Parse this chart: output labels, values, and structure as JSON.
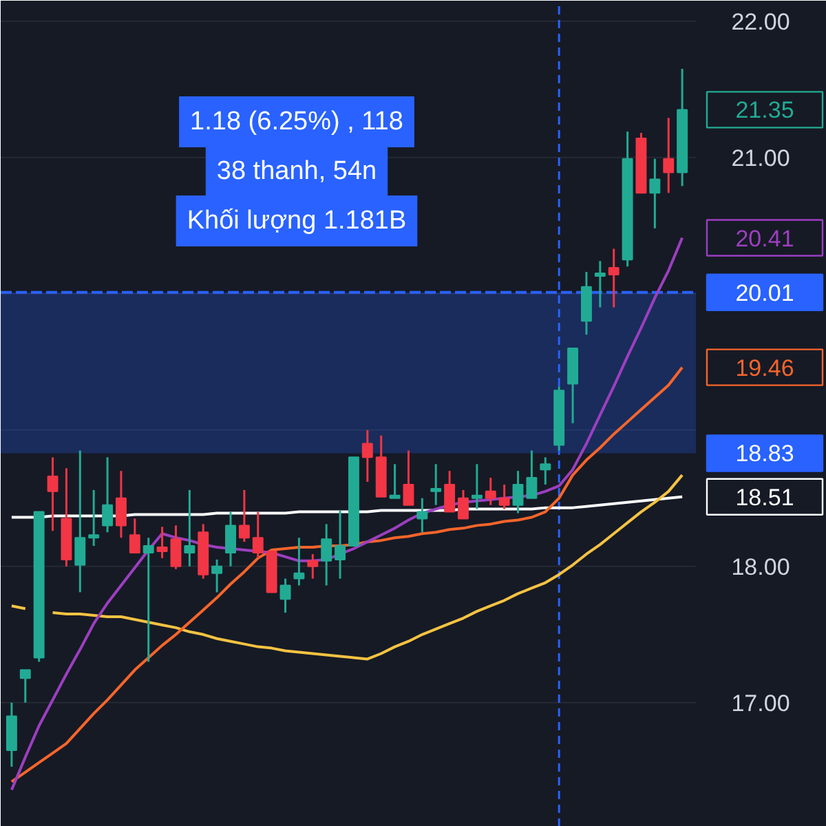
{
  "chart_data": {
    "type": "candlestick",
    "categories": [
      null,
      null,
      null,
      null,
      null,
      null,
      null,
      null,
      null,
      null,
      null,
      null,
      null,
      null,
      null,
      null,
      null,
      null,
      null,
      null,
      null,
      null,
      null,
      null,
      null,
      null,
      null,
      null,
      null,
      null,
      null,
      null,
      null,
      null,
      null,
      null,
      null,
      null,
      null,
      null,
      null,
      null,
      null,
      null,
      null,
      null,
      null,
      null,
      null,
      null
    ],
    "ohlc": [
      [
        16.65,
        17.0,
        16.53,
        16.9
      ],
      [
        17.18,
        17.24,
        17.0,
        17.24
      ],
      [
        17.33,
        18.4,
        17.3,
        18.4
      ],
      [
        18.66,
        18.8,
        18.26,
        18.55
      ],
      [
        18.35,
        18.72,
        18.0,
        18.05
      ],
      [
        18.01,
        18.85,
        17.81,
        18.21
      ],
      [
        18.21,
        18.56,
        18.15,
        18.23
      ],
      [
        18.3,
        18.8,
        18.25,
        18.45
      ],
      [
        18.5,
        18.7,
        18.21,
        18.3
      ],
      [
        18.23,
        18.35,
        18.1,
        18.1
      ],
      [
        18.1,
        18.21,
        17.3,
        18.15
      ],
      [
        18.14,
        18.29,
        18.06,
        18.11
      ],
      [
        18.2,
        18.3,
        17.98,
        18.0
      ],
      [
        18.1,
        18.56,
        18.0,
        18.15
      ],
      [
        18.25,
        18.31,
        17.91,
        17.94
      ],
      [
        17.95,
        18.05,
        17.81,
        18.0
      ],
      [
        18.1,
        18.4,
        18.0,
        18.3
      ],
      [
        18.3,
        18.56,
        18.18,
        18.21
      ],
      [
        18.21,
        18.4,
        18.06,
        18.1
      ],
      [
        18.11,
        18.11,
        17.81,
        17.81
      ],
      [
        17.76,
        17.91,
        17.66,
        17.86
      ],
      [
        17.91,
        18.21,
        17.86,
        17.95
      ],
      [
        18.04,
        18.09,
        17.91,
        18.0
      ],
      [
        18.04,
        18.31,
        17.86,
        18.2
      ],
      [
        18.05,
        18.41,
        17.91,
        18.15
      ],
      [
        18.15,
        18.8,
        18.15,
        18.8
      ],
      [
        18.9,
        19.0,
        18.62,
        18.8
      ],
      [
        18.8,
        18.96,
        18.51,
        18.51
      ],
      [
        18.5,
        18.75,
        18.5,
        18.52
      ],
      [
        18.6,
        18.85,
        18.45,
        18.45
      ],
      [
        18.35,
        18.5,
        18.25,
        18.4
      ],
      [
        18.55,
        18.75,
        18.45,
        18.57
      ],
      [
        18.6,
        18.7,
        18.4,
        18.4
      ],
      [
        18.5,
        18.56,
        18.35,
        18.35
      ],
      [
        18.5,
        18.75,
        18.42,
        18.52
      ],
      [
        18.55,
        18.65,
        18.45,
        18.5
      ],
      [
        18.5,
        18.6,
        18.42,
        18.45
      ],
      [
        18.45,
        18.7,
        18.39,
        18.6
      ],
      [
        18.5,
        18.85,
        18.5,
        18.65
      ],
      [
        18.71,
        18.8,
        18.6,
        18.75
      ],
      [
        18.89,
        19.32,
        18.85,
        19.29
      ],
      [
        19.34,
        19.6,
        19.05,
        19.6
      ],
      [
        19.8,
        20.16,
        19.7,
        20.05
      ],
      [
        20.13,
        20.24,
        19.9,
        20.15
      ],
      [
        20.19,
        20.33,
        19.9,
        20.14
      ],
      [
        20.25,
        21.19,
        20.2,
        20.99
      ],
      [
        21.14,
        21.18,
        20.74,
        20.74
      ],
      [
        20.74,
        20.99,
        20.48,
        20.84
      ],
      [
        20.99,
        21.29,
        20.74,
        20.89
      ],
      [
        20.89,
        21.65,
        20.79,
        21.35
      ]
    ],
    "colors": [
      "#22ab94",
      "#22ab94",
      "#22ab94",
      "#f23645",
      "#f23645",
      "#22ab94",
      "#22ab94",
      "#22ab94",
      "#f23645",
      "#f23645",
      "#22ab94",
      "#f23645",
      "#f23645",
      "#22ab94",
      "#f23645",
      "#22ab94",
      "#22ab94",
      "#f23645",
      "#f23645",
      "#f23645",
      "#22ab94",
      "#22ab94",
      "#f23645",
      "#22ab94",
      "#22ab94",
      "#22ab94",
      "#f23645",
      "#f23645",
      "#22ab94",
      "#f23645",
      "#22ab94",
      "#22ab94",
      "#f23645",
      "#f23645",
      "#22ab94",
      "#f23645",
      "#f23645",
      "#22ab94",
      "#22ab94",
      "#22ab94",
      "#22ab94",
      "#22ab94",
      "#22ab94",
      "#22ab94",
      "#f23645",
      "#22ab94",
      "#f23645",
      "#22ab94",
      "#f23645",
      "#22ab94"
    ],
    "series": [
      {
        "type": "line",
        "color": "#ffffff",
        "values": [
          18.36,
          18.36,
          18.36,
          18.37,
          18.37,
          18.37,
          18.37,
          18.37,
          18.37,
          18.38,
          18.38,
          18.38,
          18.38,
          18.38,
          18.38,
          18.39,
          18.39,
          18.39,
          18.39,
          18.39,
          18.39,
          18.4,
          18.4,
          18.4,
          18.4,
          18.4,
          18.4,
          18.41,
          18.41,
          18.41,
          18.41,
          18.41,
          18.41,
          18.42,
          18.42,
          18.42,
          18.42,
          18.42,
          18.42,
          18.43,
          18.43,
          18.43,
          18.44,
          18.45,
          18.46,
          18.47,
          18.48,
          18.49,
          18.5,
          18.51
        ]
      },
      {
        "type": "line",
        "color": "#f5c342",
        "values": [
          17.71,
          17.69,
          null,
          17.66,
          17.65,
          17.65,
          17.64,
          17.63,
          17.63,
          17.61,
          17.59,
          17.57,
          17.55,
          17.52,
          17.5,
          17.47,
          17.45,
          17.43,
          17.41,
          17.4,
          17.38,
          17.37,
          17.36,
          17.35,
          17.34,
          17.33,
          17.32,
          17.36,
          17.41,
          17.45,
          17.5,
          17.54,
          17.58,
          17.62,
          17.67,
          17.71,
          17.75,
          17.8,
          17.84,
          17.88,
          17.94,
          18.01,
          18.09,
          18.16,
          18.24,
          18.32,
          18.4,
          18.47,
          18.55,
          18.67
        ]
      },
      {
        "type": "line",
        "color": "#f7652b",
        "values": [
          16.42,
          16.49,
          16.56,
          16.63,
          16.7,
          16.81,
          16.92,
          17.02,
          17.13,
          17.24,
          17.33,
          17.42,
          17.5,
          17.59,
          17.68,
          17.77,
          17.87,
          17.96,
          18.06,
          18.12,
          18.13,
          18.14,
          18.14,
          18.15,
          18.15,
          18.16,
          18.18,
          18.19,
          18.21,
          18.22,
          18.24,
          18.25,
          18.27,
          18.28,
          18.3,
          18.31,
          18.33,
          18.34,
          18.36,
          18.4,
          18.5,
          18.67,
          18.78,
          18.87,
          18.97,
          19.06,
          19.15,
          19.24,
          19.33,
          19.46
        ]
      },
      {
        "type": "line",
        "color": "#9c3fc0",
        "values": [
          16.36,
          16.6,
          16.83,
          17.02,
          17.21,
          17.39,
          17.58,
          17.73,
          17.86,
          17.99,
          18.12,
          18.24,
          18.21,
          18.19,
          18.16,
          18.14,
          18.13,
          18.12,
          18.11,
          18.1,
          18.07,
          18.04,
          18.04,
          18.05,
          18.09,
          18.13,
          18.18,
          18.23,
          18.28,
          18.34,
          18.39,
          18.42,
          18.45,
          18.47,
          18.48,
          18.49,
          18.5,
          18.51,
          18.52,
          18.55,
          18.59,
          18.71,
          18.9,
          19.11,
          19.32,
          19.54,
          19.75,
          19.97,
          20.17,
          20.41
        ]
      }
    ],
    "ylim": [
      16.09,
      22.15
    ],
    "yticks": [
      {
        "value": 17,
        "label": "17.00"
      },
      {
        "value": 18,
        "label": "18.00"
      },
      {
        "value": 19,
        "label": null
      },
      {
        "value": 20,
        "label": null
      },
      {
        "value": 21,
        "label": "21.00"
      },
      {
        "value": 22,
        "label": "22.00"
      }
    ],
    "tick_labels": "y",
    "grid": "y",
    "bands": [
      {
        "axis": "y",
        "from": 18.83,
        "to": 20.01,
        "label": "18.83",
        "color": "#2962ff"
      }
    ],
    "ref_lines": [
      {
        "axis": "y",
        "value": 20.01,
        "label": "20.01",
        "color": "#2962ff",
        "line_style": "dashed"
      }
    ],
    "annotations": [
      "1.18 (6.25%) , 118",
      "38 thanh, 54n",
      "Khối lượng 1.181B",
      "21.35",
      "20.41",
      "19.46",
      "18.51"
    ]
  }
}
